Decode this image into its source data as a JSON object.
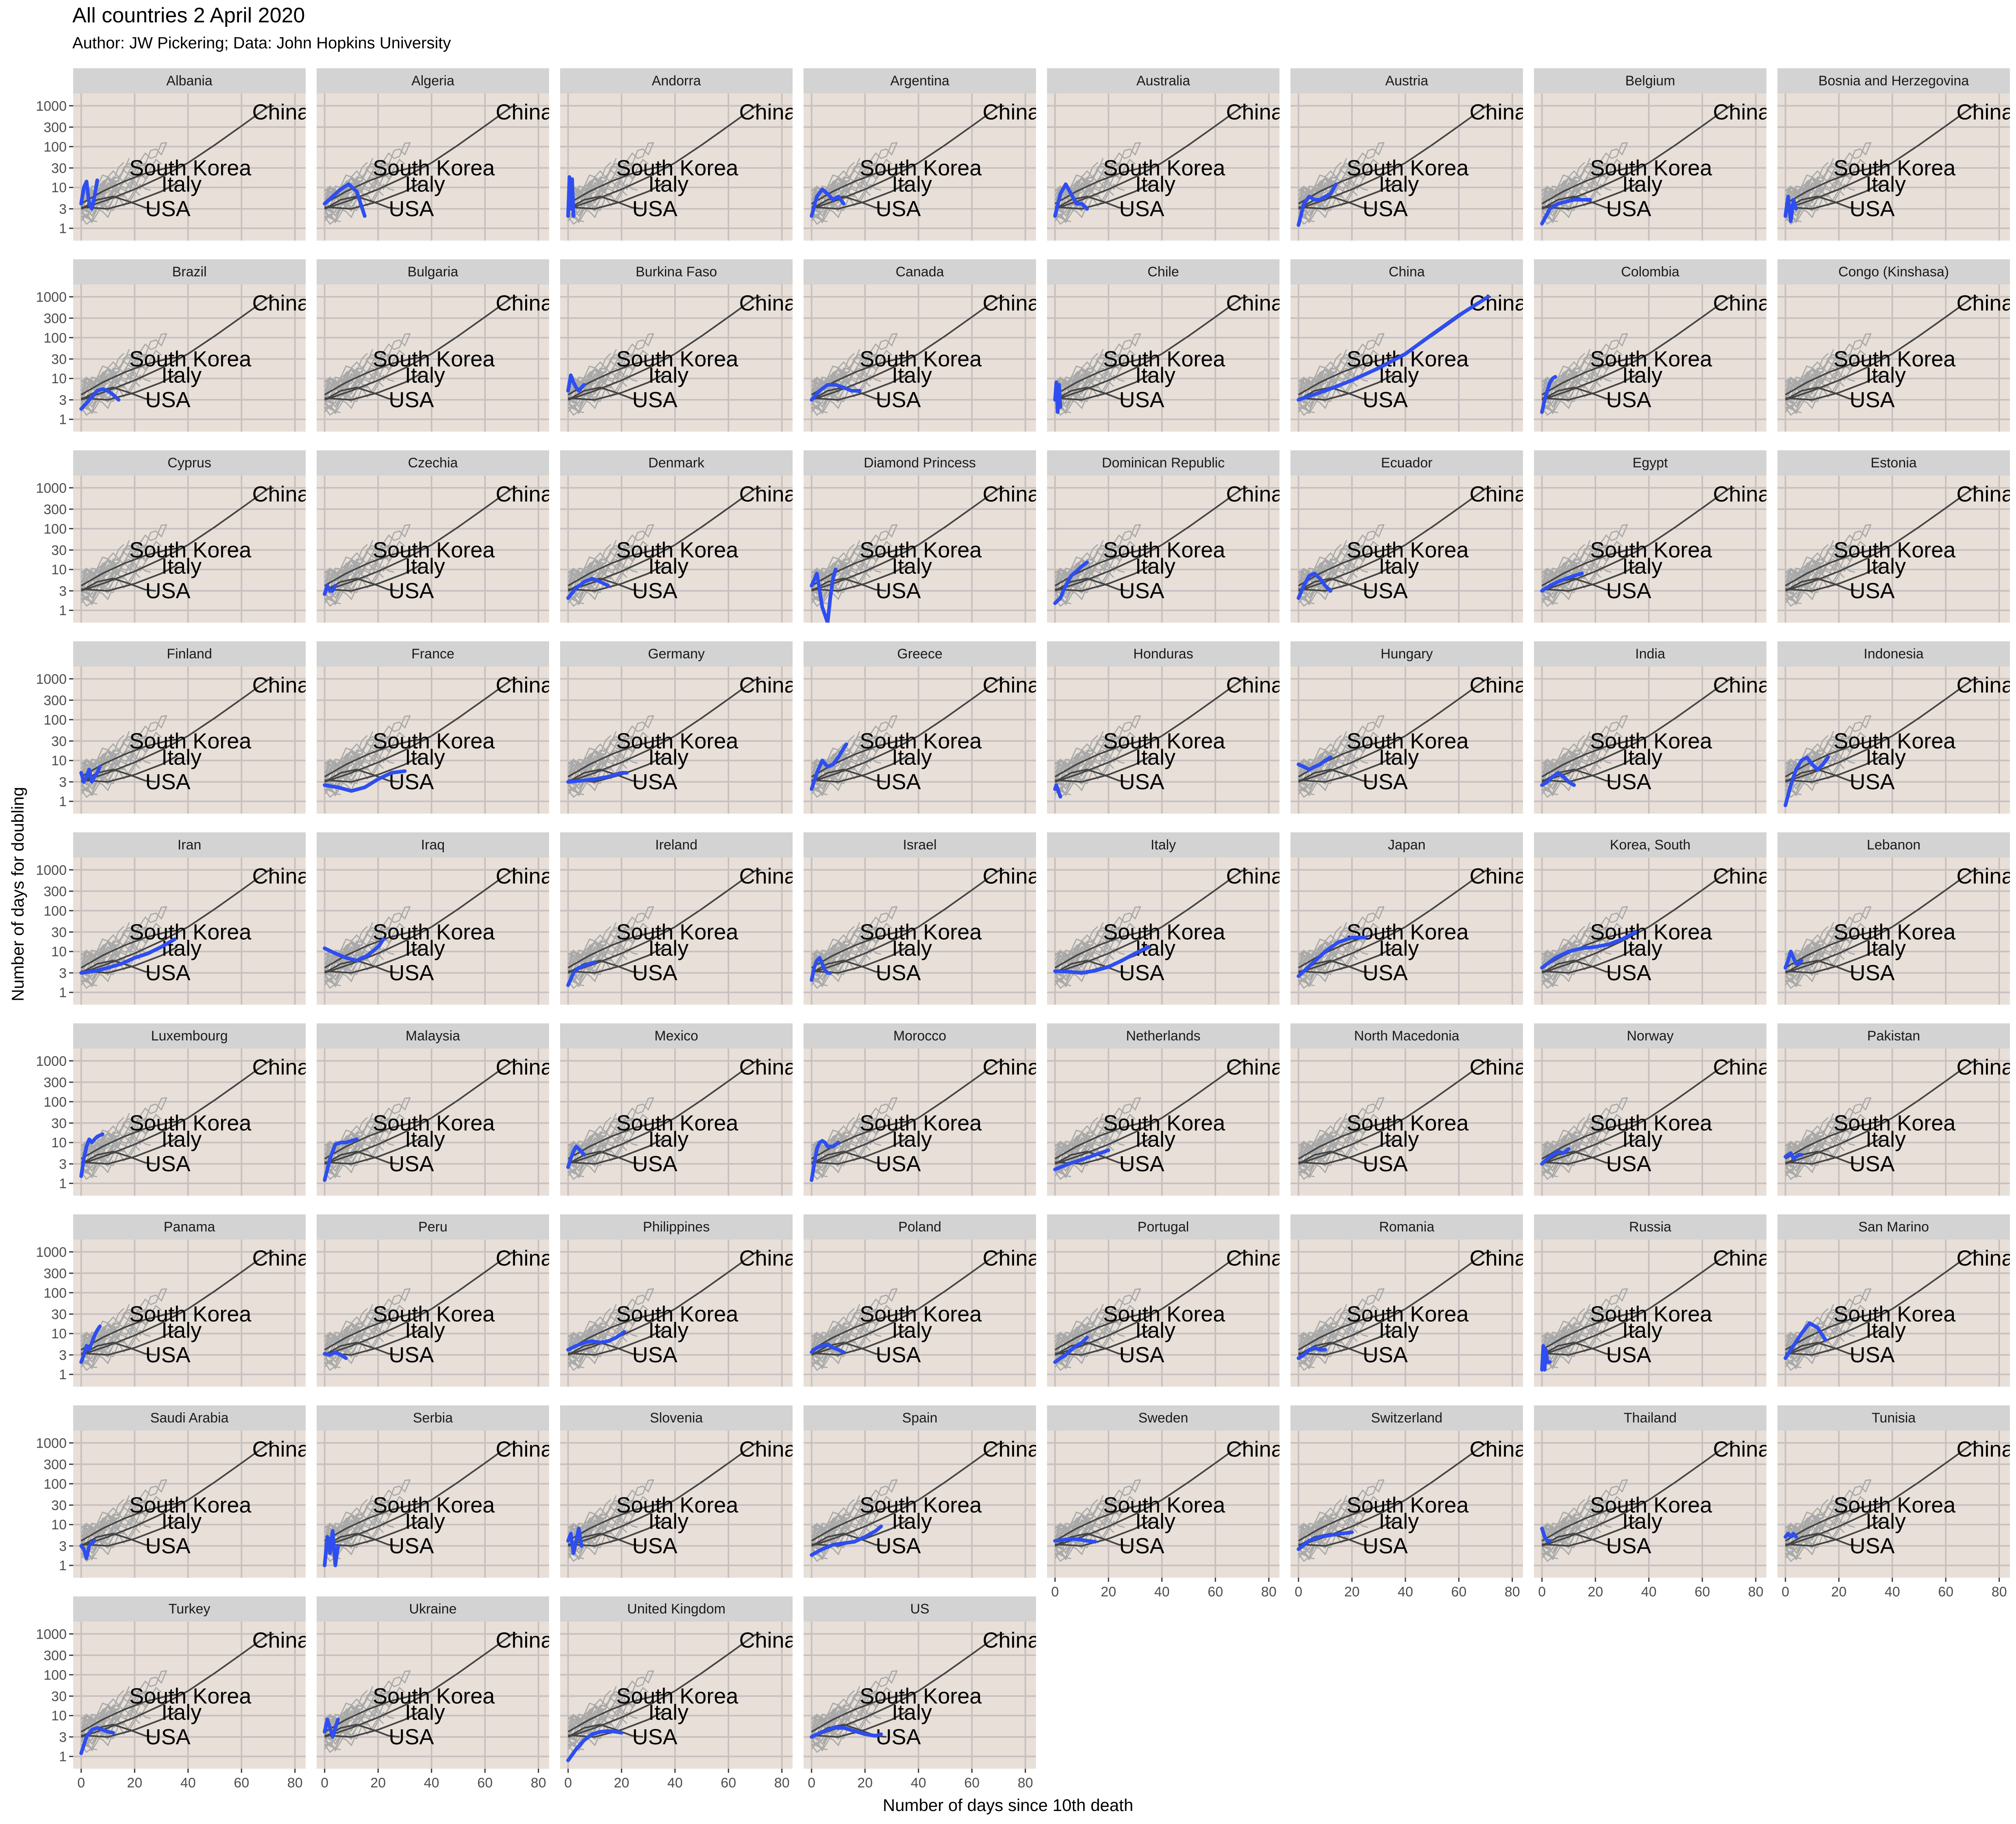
{
  "chart_data": {
    "type": "line",
    "title": "All countries 2 April 2020",
    "subtitle": "Author: JW Pickering; Data: John Hopkins University",
    "xlabel": "Number of days since 10th death",
    "ylabel": "Number of days for doubling",
    "x_ticks": [
      0,
      20,
      40,
      60,
      80
    ],
    "y_ticks": [
      1,
      3,
      10,
      30,
      100,
      300,
      1000
    ],
    "y_scale": "log",
    "xlim": [
      -3,
      84
    ],
    "ylim": [
      0.5,
      2000
    ],
    "grid": true,
    "background_color": "#e8e0d8",
    "strip_color": "#d3d3d3",
    "highlight_color": "#2e4ef0",
    "reference_labels": [
      "China",
      "South Korea",
      "Italy",
      "USA"
    ],
    "panels": [
      {
        "name": "Albania",
        "x": [
          0,
          1,
          2,
          3,
          4,
          5,
          6
        ],
        "y": [
          4,
          10,
          14,
          4,
          3,
          6,
          15
        ]
      },
      {
        "name": "Algeria",
        "x": [
          0,
          3,
          6,
          9,
          12,
          15
        ],
        "y": [
          4,
          6,
          9,
          12,
          8,
          2
        ]
      },
      {
        "name": "Andorra",
        "x": [
          0,
          0.5,
          1,
          1.5,
          2
        ],
        "y": [
          2,
          18,
          3,
          16,
          2
        ]
      },
      {
        "name": "Argentina",
        "x": [
          0,
          2,
          4,
          6,
          8,
          10,
          12
        ],
        "y": [
          2,
          6,
          9,
          7,
          5,
          6,
          4
        ]
      },
      {
        "name": "Australia",
        "x": [
          0,
          2,
          4,
          6,
          8,
          10,
          12
        ],
        "y": [
          2,
          7,
          12,
          7,
          4,
          4,
          3
        ]
      },
      {
        "name": "Austria",
        "x": [
          0,
          2,
          4,
          6,
          8,
          10,
          12,
          14
        ],
        "y": [
          1.2,
          4,
          6,
          5,
          5,
          6,
          7,
          12
        ]
      },
      {
        "name": "Belgium",
        "x": [
          0,
          3,
          6,
          9,
          12,
          15,
          18
        ],
        "y": [
          1.3,
          3,
          4,
          4.5,
          5,
          5,
          5
        ]
      },
      {
        "name": "Bosnia and Herzegovina",
        "x": [
          0,
          1,
          2,
          3,
          4
        ],
        "y": [
          2,
          6,
          1.5,
          5,
          3
        ]
      },
      {
        "name": "Brazil",
        "x": [
          0,
          2,
          4,
          6,
          8,
          10,
          12,
          14
        ],
        "y": [
          1.8,
          2.5,
          3.5,
          5,
          5.5,
          5,
          4,
          3
        ]
      },
      {
        "name": "Bulgaria",
        "x": [],
        "y": []
      },
      {
        "name": "Burkina Faso",
        "x": [
          0,
          1,
          2,
          3,
          4,
          5,
          6
        ],
        "y": [
          5,
          12,
          8,
          6,
          5,
          6,
          7
        ]
      },
      {
        "name": "Canada",
        "x": [
          0,
          3,
          6,
          9,
          12,
          15,
          18
        ],
        "y": [
          3,
          5,
          7,
          7,
          6,
          5,
          5
        ]
      },
      {
        "name": "Chile",
        "x": [
          0,
          0.5,
          1,
          1.5,
          2
        ],
        "y": [
          3,
          8,
          1.5,
          7,
          2
        ]
      },
      {
        "name": "China",
        "x": [
          0,
          10,
          20,
          30,
          40,
          50,
          60,
          71
        ],
        "y": [
          3,
          5,
          9,
          18,
          40,
          120,
          350,
          1000
        ]
      },
      {
        "name": "Colombia",
        "x": [
          0,
          1,
          2,
          3,
          4,
          5
        ],
        "y": [
          1.5,
          3,
          5,
          8,
          10,
          11
        ]
      },
      {
        "name": "Congo (Kinshasa)",
        "x": [],
        "y": []
      },
      {
        "name": "Cyprus",
        "x": [],
        "y": []
      },
      {
        "name": "Czechia",
        "x": [
          0,
          1,
          2,
          3,
          4
        ],
        "y": [
          2.5,
          4,
          3,
          3,
          4
        ]
      },
      {
        "name": "Denmark",
        "x": [
          0,
          3,
          6,
          9,
          12,
          15
        ],
        "y": [
          2,
          3.5,
          5,
          6,
          5,
          4
        ]
      },
      {
        "name": "Diamond Princess",
        "x": [
          0,
          2,
          4,
          6,
          7,
          8,
          9
        ],
        "y": [
          4,
          8,
          1.2,
          0.5,
          2,
          6,
          10
        ]
      },
      {
        "name": "Dominican Republic",
        "x": [
          0,
          2,
          4,
          6,
          8,
          10,
          12
        ],
        "y": [
          1.5,
          2,
          4,
          7,
          9,
          12,
          15
        ]
      },
      {
        "name": "Ecuador",
        "x": [
          0,
          2,
          4,
          6,
          8,
          10,
          12
        ],
        "y": [
          2,
          4,
          7,
          8,
          6,
          4,
          3
        ]
      },
      {
        "name": "Egypt",
        "x": [
          0,
          3,
          6,
          9,
          12,
          15
        ],
        "y": [
          3,
          4,
          5,
          6,
          7,
          8
        ]
      },
      {
        "name": "Estonia",
        "x": [],
        "y": []
      },
      {
        "name": "Finland",
        "x": [
          0,
          1,
          2,
          3,
          4,
          5,
          6,
          7
        ],
        "y": [
          5,
          3,
          4,
          6,
          3,
          4,
          5,
          7
        ]
      },
      {
        "name": "France",
        "x": [
          0,
          5,
          10,
          15,
          20,
          25,
          30
        ],
        "y": [
          2.5,
          2.2,
          1.8,
          2.2,
          3.5,
          5,
          5.5
        ]
      },
      {
        "name": "Germany",
        "x": [
          0,
          5,
          10,
          15,
          20,
          22
        ],
        "y": [
          3,
          3.2,
          3.5,
          4,
          5,
          5
        ]
      },
      {
        "name": "Greece",
        "x": [
          0,
          2,
          4,
          6,
          8,
          10,
          12,
          13
        ],
        "y": [
          2,
          5,
          10,
          7,
          8,
          12,
          20,
          25
        ]
      },
      {
        "name": "Honduras",
        "x": [
          0,
          0.5,
          1,
          1.5,
          2
        ],
        "y": [
          2,
          2.5,
          2,
          1.6,
          1.3
        ]
      },
      {
        "name": "Hungary",
        "x": [
          0,
          2,
          4,
          6,
          8,
          10,
          12
        ],
        "y": [
          8,
          7,
          6,
          7,
          8,
          10,
          12
        ]
      },
      {
        "name": "India",
        "x": [
          0,
          2,
          4,
          6,
          8,
          10,
          12
        ],
        "y": [
          2.5,
          3,
          4,
          5,
          4,
          3,
          2.5
        ]
      },
      {
        "name": "Indonesia",
        "x": [
          0,
          2,
          4,
          6,
          8,
          10,
          12,
          14,
          16
        ],
        "y": [
          0.8,
          2.5,
          6,
          10,
          12,
          8,
          6,
          8,
          12
        ]
      },
      {
        "name": "Iran",
        "x": [
          0,
          5,
          10,
          15,
          20,
          25,
          30,
          35
        ],
        "y": [
          3,
          3.3,
          4,
          5,
          7,
          9,
          13,
          20
        ]
      },
      {
        "name": "Iraq",
        "x": [
          0,
          4,
          8,
          12,
          16,
          20,
          22
        ],
        "y": [
          12,
          9,
          7,
          6,
          8,
          13,
          20
        ]
      },
      {
        "name": "Ireland",
        "x": [
          0,
          2,
          4,
          6,
          8,
          10
        ],
        "y": [
          1.5,
          3,
          4,
          4.5,
          5,
          5.5
        ]
      },
      {
        "name": "Israel",
        "x": [
          0,
          1,
          2,
          3,
          4,
          5,
          6,
          7
        ],
        "y": [
          2,
          4,
          6,
          7,
          5,
          3.5,
          3,
          3
        ]
      },
      {
        "name": "Italy",
        "x": [
          0,
          5,
          10,
          15,
          20,
          25,
          30,
          35
        ],
        "y": [
          3.3,
          3.2,
          3,
          3.4,
          4.2,
          6,
          9,
          13
        ]
      },
      {
        "name": "Japan",
        "x": [
          0,
          5,
          10,
          15,
          20,
          25
        ],
        "y": [
          2.5,
          5,
          10,
          17,
          22,
          22
        ]
      },
      {
        "name": "Korea, South",
        "x": [
          0,
          5,
          10,
          15,
          20,
          25,
          30,
          35
        ],
        "y": [
          4,
          7,
          10,
          12,
          13,
          15,
          20,
          30
        ]
      },
      {
        "name": "Lebanon",
        "x": [
          0,
          1,
          2,
          3,
          4,
          5,
          6
        ],
        "y": [
          4,
          6,
          10,
          7,
          5,
          5,
          6
        ]
      },
      {
        "name": "Luxembourg",
        "x": [
          0,
          1,
          2,
          3,
          4,
          5,
          6,
          7,
          8
        ],
        "y": [
          1.5,
          4,
          8,
          12,
          10,
          12,
          14,
          15,
          16
        ]
      },
      {
        "name": "Malaysia",
        "x": [
          0,
          2,
          4,
          6,
          8,
          10,
          12
        ],
        "y": [
          1.2,
          4,
          9,
          10,
          10,
          11,
          12
        ]
      },
      {
        "name": "Mexico",
        "x": [
          0,
          1,
          2,
          3,
          4,
          5,
          6
        ],
        "y": [
          2.5,
          4,
          6,
          8,
          7,
          6,
          5
        ]
      },
      {
        "name": "Morocco",
        "x": [
          0,
          1,
          2,
          3,
          4,
          5,
          6,
          8,
          10
        ],
        "y": [
          1.2,
          3,
          7,
          10,
          11,
          10,
          8,
          8,
          10
        ]
      },
      {
        "name": "Netherlands",
        "x": [
          0,
          5,
          10,
          15,
          20
        ],
        "y": [
          2.2,
          3,
          3.8,
          5,
          6.5
        ]
      },
      {
        "name": "North Macedonia",
        "x": [],
        "y": []
      },
      {
        "name": "Norway",
        "x": [
          0,
          2,
          4,
          6,
          8,
          10
        ],
        "y": [
          3,
          4,
          5,
          6,
          5.5,
          7
        ]
      },
      {
        "name": "Pakistan",
        "x": [
          0,
          1,
          2,
          3,
          4,
          5,
          6
        ],
        "y": [
          4.5,
          5,
          5.5,
          4,
          4.5,
          5,
          5
        ]
      },
      {
        "name": "Panama",
        "x": [
          0,
          1,
          2,
          3,
          4,
          5,
          6,
          7
        ],
        "y": [
          2,
          3,
          5,
          4,
          6,
          9,
          12,
          15
        ]
      },
      {
        "name": "Peru",
        "x": [
          0,
          2,
          4,
          6,
          8
        ],
        "y": [
          3.2,
          3,
          3.5,
          3,
          2.5
        ]
      },
      {
        "name": "Philippines",
        "x": [
          0,
          3,
          6,
          9,
          12,
          15,
          18,
          21
        ],
        "y": [
          4,
          5,
          6,
          6.5,
          6,
          6.5,
          8,
          11
        ]
      },
      {
        "name": "Poland",
        "x": [
          0,
          2,
          4,
          6,
          8,
          10,
          12
        ],
        "y": [
          3.5,
          4.5,
          5,
          5.5,
          4.5,
          4,
          3.5
        ]
      },
      {
        "name": "Portugal",
        "x": [
          0,
          2,
          4,
          6,
          8,
          10,
          12
        ],
        "y": [
          2,
          2.5,
          3,
          4,
          5,
          6,
          8
        ]
      },
      {
        "name": "Romania",
        "x": [
          0,
          2,
          4,
          6,
          8,
          10
        ],
        "y": [
          2.5,
          3,
          4,
          4.5,
          4,
          4
        ]
      },
      {
        "name": "Russia",
        "x": [
          0,
          0.5,
          1,
          1.5,
          2,
          3
        ],
        "y": [
          1.3,
          5,
          1.3,
          4,
          2,
          2
        ]
      },
      {
        "name": "San Marino",
        "x": [
          0,
          3,
          6,
          9,
          12,
          15
        ],
        "y": [
          2.5,
          5,
          10,
          18,
          14,
          7
        ]
      },
      {
        "name": "Saudi Arabia",
        "x": [
          0,
          1,
          2,
          3,
          4,
          5
        ],
        "y": [
          3,
          2.5,
          1.5,
          3,
          3.5,
          4
        ]
      },
      {
        "name": "Serbia",
        "x": [
          0,
          1,
          2,
          3,
          4,
          5
        ],
        "y": [
          1,
          5,
          2,
          7,
          1,
          3
        ]
      },
      {
        "name": "Slovenia",
        "x": [
          0,
          1,
          2,
          3,
          4,
          5
        ],
        "y": [
          4,
          6,
          2,
          4,
          8,
          3
        ]
      },
      {
        "name": "Spain",
        "x": [
          0,
          4,
          8,
          12,
          16,
          20,
          24,
          26
        ],
        "y": [
          1.8,
          2.5,
          3.2,
          3.5,
          3.8,
          5,
          7,
          9
        ]
      },
      {
        "name": "Sweden",
        "x": [
          0,
          3,
          6,
          9,
          12,
          15
        ],
        "y": [
          4,
          4.2,
          4.5,
          4.3,
          4,
          3.8
        ]
      },
      {
        "name": "Switzerland",
        "x": [
          0,
          4,
          8,
          12,
          16,
          20
        ],
        "y": [
          2.5,
          4,
          5,
          5.5,
          6,
          6.5
        ]
      },
      {
        "name": "Thailand",
        "x": [
          0,
          1,
          2,
          3
        ],
        "y": [
          8,
          5,
          4,
          4
        ]
      },
      {
        "name": "Tunisia",
        "x": [
          0,
          1,
          2,
          3,
          4
        ],
        "y": [
          5,
          6,
          5,
          6,
          5
        ]
      },
      {
        "name": "Turkey",
        "x": [
          0,
          2,
          4,
          6,
          8,
          10,
          12
        ],
        "y": [
          1.2,
          3,
          4.5,
          5,
          4.5,
          4,
          3.8
        ]
      },
      {
        "name": "Ukraine",
        "x": [
          0,
          1,
          2,
          3,
          4,
          5
        ],
        "y": [
          4,
          8,
          5,
          3,
          5,
          8
        ]
      },
      {
        "name": "United Kingdom",
        "x": [
          0,
          3,
          6,
          9,
          12,
          15,
          18,
          20
        ],
        "y": [
          0.8,
          1.5,
          2.5,
          3.5,
          4,
          4.2,
          4,
          3.8
        ]
      },
      {
        "name": "US",
        "x": [
          0,
          4,
          8,
          12,
          16,
          20,
          24,
          26
        ],
        "y": [
          3,
          4,
          5,
          5,
          4.2,
          3.5,
          3.2,
          3.5
        ]
      }
    ]
  }
}
